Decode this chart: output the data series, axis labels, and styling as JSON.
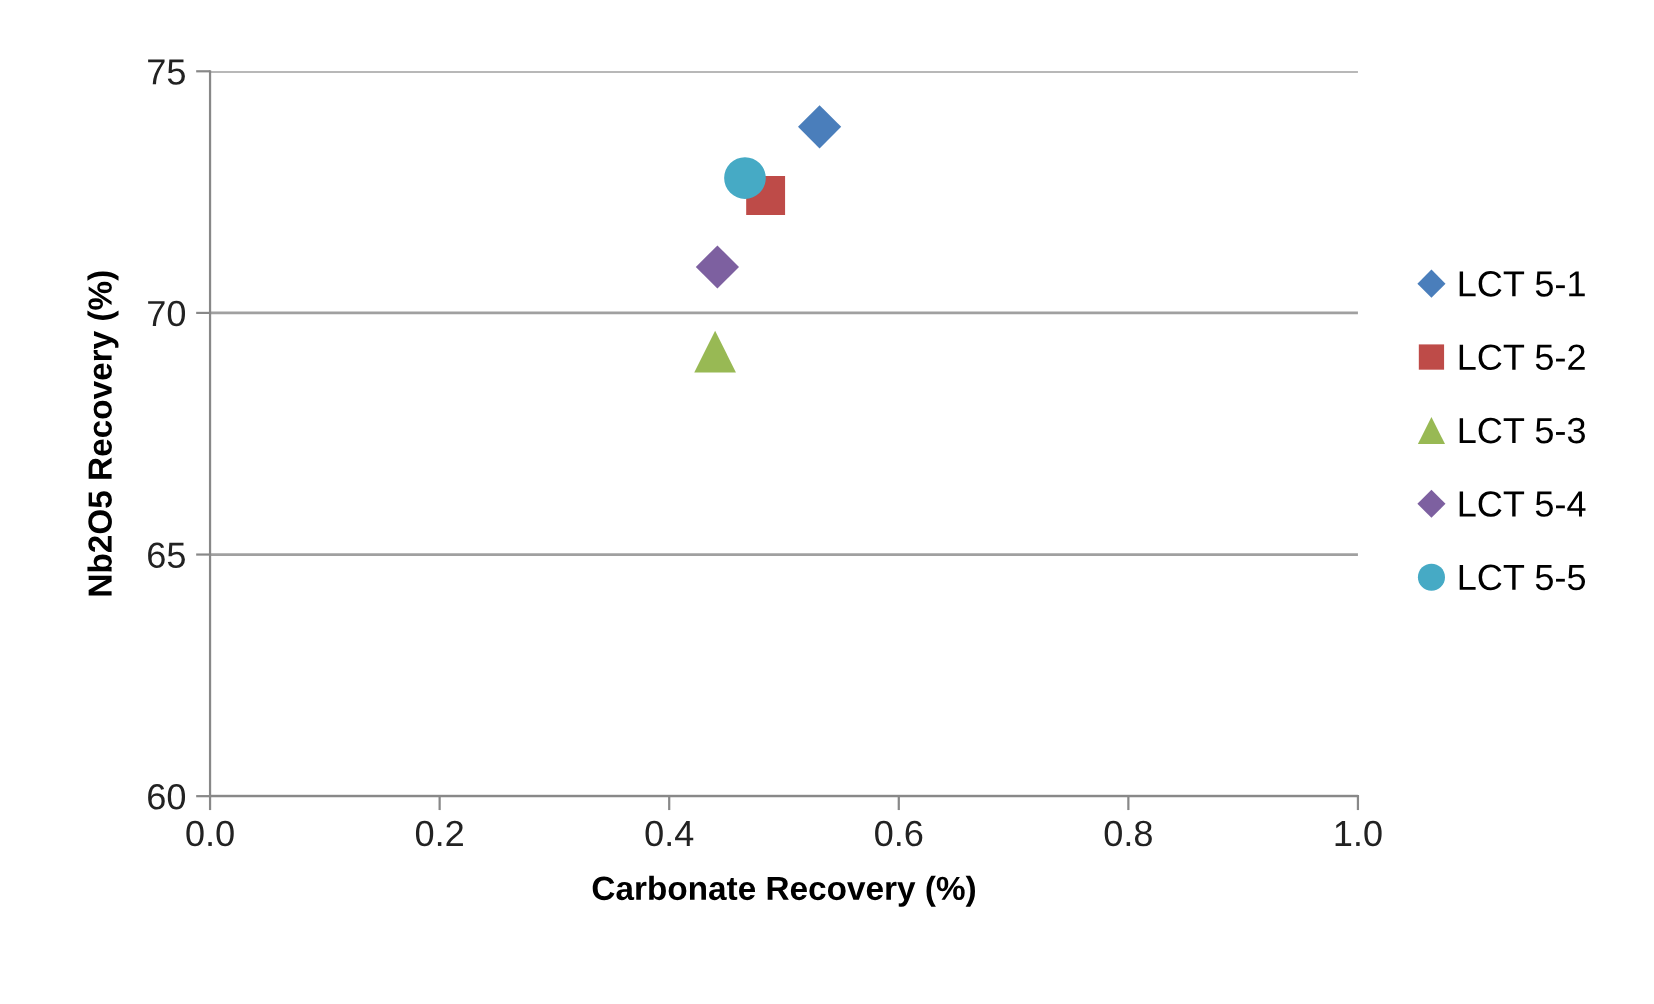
{
  "chart_data": {
    "type": "scatter",
    "xlabel": "Carbonate Recovery (%)",
    "ylabel": "Nb2O5 Recovery (%)",
    "xlim": [
      0.0,
      1.0
    ],
    "xticks": [
      {
        "value": 0,
        "label": "0.0"
      },
      0.2,
      0.4,
      0.6,
      0.8,
      {
        "value": 1,
        "label": "1.0"
      }
    ],
    "ylim": [
      60,
      75
    ],
    "yticks": [
      60,
      65,
      70,
      75
    ],
    "grid": "y",
    "legend": "right",
    "series": [
      {
        "name": "LCT 5-1",
        "color": "#4a7ebb",
        "marker": "diamond",
        "x": [
          0.531
        ],
        "values": [
          73.85
        ]
      },
      {
        "name": "LCT 5-2",
        "color": "#be4b48",
        "marker": "square",
        "x": [
          0.484
        ],
        "values": [
          72.43
        ]
      },
      {
        "name": "LCT 5-3",
        "color": "#98b954",
        "marker": "triangle",
        "x": [
          0.44
        ],
        "values": [
          69.2
        ]
      },
      {
        "name": "LCT 5-4",
        "color": "#7d60a0",
        "marker": "diamond",
        "x": [
          0.442
        ],
        "values": [
          70.95
        ]
      },
      {
        "name": "LCT 5-5",
        "color": "#46aac5",
        "marker": "circle",
        "x": [
          0.466
        ],
        "values": [
          72.79
        ]
      }
    ]
  }
}
